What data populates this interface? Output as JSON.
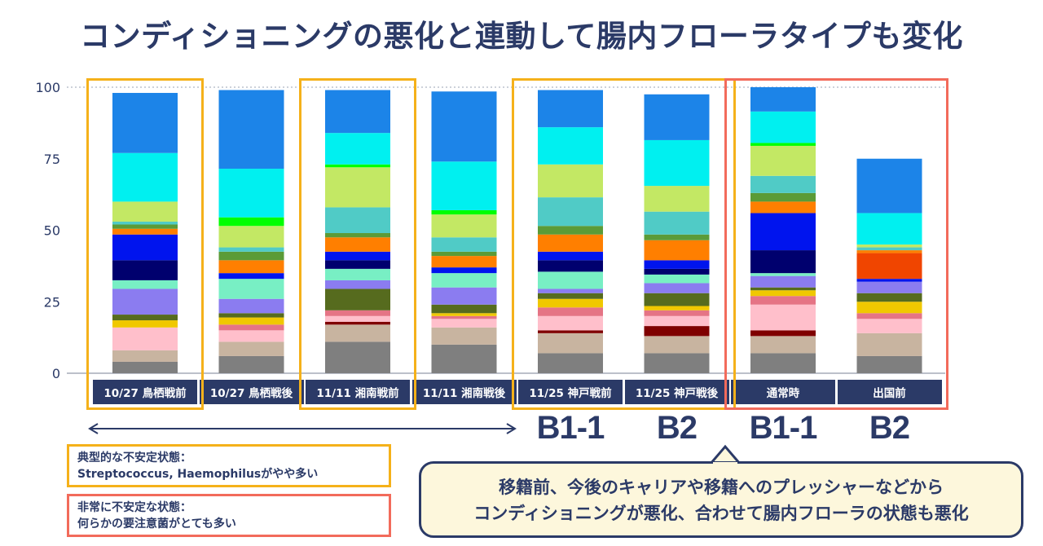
{
  "title": "コンディショニングの悪化と連動して腸内フローラタイプも変化",
  "chart_data": {
    "type": "bar",
    "stacked": true,
    "ylim": [
      0,
      100
    ],
    "yticks": [
      0,
      25,
      50,
      75,
      100
    ],
    "grid": "dotted line at 100",
    "categories": [
      "10/27 鳥栖戦前",
      "10/27 鳥栖戦後",
      "11/11 湘南戦前",
      "11/11 湘南戦後",
      "11/25 神戸戦前",
      "11/25 神戸戦後",
      "通常時",
      "出国前"
    ],
    "segment_colors": [
      "#7f7f7f",
      "#c8b4a0",
      "#7f0000",
      "#ffbfcb",
      "#e57485",
      "#f0c800",
      "#566b1e",
      "#8b7cf0",
      "#78efc4",
      "#00006e",
      "#0014ee",
      "#f04500",
      "#ff7f00",
      "#5b9b37",
      "#50cbc6",
      "#c3e864",
      "#00ee9a",
      "#00ff00",
      "#00f0f0",
      "#1c84e8"
    ],
    "stacks": [
      [
        4,
        4,
        0,
        8,
        0,
        2.5,
        2,
        9,
        3,
        7,
        9,
        0,
        2,
        1.5,
        1,
        7,
        0,
        0,
        17,
        21
      ],
      [
        6,
        5,
        0,
        4,
        2,
        2.5,
        1.5,
        5,
        7,
        0,
        2,
        0,
        4.5,
        3,
        1.5,
        7.5,
        0,
        3,
        17,
        27.5
      ],
      [
        11,
        6,
        1,
        2,
        2,
        0,
        7.5,
        3,
        4,
        3,
        3,
        0,
        5,
        1.5,
        9,
        14,
        0,
        1,
        11,
        15
      ],
      [
        10,
        6,
        0,
        3,
        1,
        1,
        3,
        6,
        5,
        0,
        2,
        0,
        4,
        1.5,
        5,
        8,
        0,
        1.5,
        17,
        24.5
      ],
      [
        7,
        7,
        1,
        5,
        3,
        3,
        2,
        1.5,
        6,
        4,
        3,
        0,
        6,
        3,
        10,
        11.5,
        0,
        0,
        13,
        13
      ],
      [
        7,
        6,
        3.5,
        3.5,
        2,
        1.5,
        4.5,
        3.5,
        3,
        2,
        3,
        0,
        7,
        2,
        8,
        9,
        0,
        0,
        16,
        16
      ],
      [
        7,
        6,
        2,
        9,
        3,
        2,
        1,
        4,
        1,
        8,
        13,
        0,
        4,
        3,
        6,
        10.5,
        0,
        1,
        11,
        8.5
      ],
      [
        6,
        8,
        0,
        5,
        2,
        4,
        3,
        4,
        0,
        0,
        1,
        9,
        1,
        0,
        1,
        1,
        0,
        0,
        11,
        19
      ]
    ],
    "highlight_groups": [
      {
        "columns": [
          0
        ],
        "color": "#f5b11a"
      },
      {
        "columns": [
          2
        ],
        "color": "#f5b11a"
      },
      {
        "columns": [
          4,
          5
        ],
        "color": "#f5b11a"
      },
      {
        "columns": [
          6,
          7
        ],
        "color": "#f26b5b"
      }
    ],
    "type_labels": [
      {
        "column": 4,
        "text": "B1-1"
      },
      {
        "column": 5,
        "text": "B2"
      },
      {
        "column": 6,
        "text": "B1-1"
      },
      {
        "column": 7,
        "text": "B2"
      }
    ]
  },
  "legend": {
    "orange_line1": "典型的な不安定状態：",
    "orange_line2": "Streptococcus, Haemophilusがやや多い",
    "red_line1": "非常に不安定な状態：",
    "red_line2": "何らかの要注意菌がとても多い"
  },
  "callout": {
    "line1": "移籍前、今後のキャリアや移籍へのプレッシャーなどから",
    "line2": "コンディショニングが悪化、合わせて腸内フローラの状態も悪化"
  }
}
